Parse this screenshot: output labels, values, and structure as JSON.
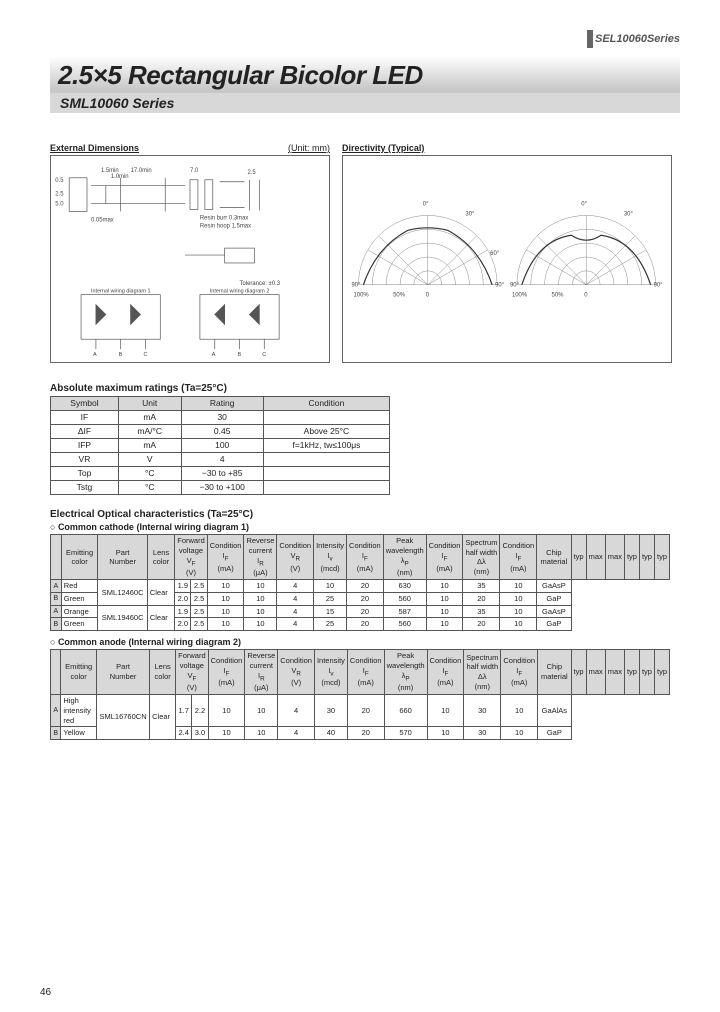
{
  "header_series": "SEL10060Series",
  "title": "2.5×5 Rectangular Bicolor LED",
  "subtitle": "SML10060 Series",
  "diagrams": {
    "dim_title": "External Dimensions",
    "dim_unit": "(Unit: mm)",
    "dir_title": "Directivity (Typical)",
    "dim_notes": [
      "1.5min",
      "1.0min",
      "17.0min",
      "7.0",
      "2.5",
      "0.5",
      "2.5",
      "5.0",
      "2.5",
      "3.2",
      "2.8",
      "0.05max",
      "Resin burr 0.3max",
      "Resin hoop 1.5max",
      "Tolerance: ±0.3",
      "Internal wiring diagram 1",
      "Internal wiring diagram 2",
      "A",
      "B",
      "C"
    ],
    "polar_labels": [
      "0°",
      "30°",
      "60°",
      "90°",
      "100%",
      "50%",
      "0"
    ]
  },
  "ratings": {
    "title": "Absolute maximum ratings (Ta=25°C)",
    "headers": [
      "Symbol",
      "Unit",
      "Rating",
      "Condition"
    ],
    "rows": [
      [
        "IF",
        "mA",
        "30",
        ""
      ],
      [
        "ΔIF",
        "mA/°C",
        "0.45",
        "Above 25°C"
      ],
      [
        "IFP",
        "mA",
        "100",
        "f=1kHz, tw≤100μs"
      ],
      [
        "VR",
        "V",
        "4",
        ""
      ],
      [
        "Top",
        "°C",
        "−30 to +85",
        ""
      ],
      [
        "Tstg",
        "°C",
        "−30 to +100",
        ""
      ]
    ]
  },
  "char": {
    "title": "Electrical Optical characteristics (Ta=25°C)",
    "sub1": "Common cathode (Internal wiring diagram 1)",
    "sub2": "Common anode (Internal wiring diagram 2)",
    "group_headers": [
      "Emitting color",
      "Part Number",
      "Lens color",
      "Forward voltage VF (V)",
      "Condition IF (mA)",
      "Reverse current IR (μA)",
      "Condition VR (V)",
      "Intensity Iv (mcd)",
      "Condition IF (mA)",
      "Peak wavelength λP (nm)",
      "Condition IF (mA)",
      "Spectrum half width Δλ (nm)",
      "Condition IF (mA)",
      "Chip material"
    ],
    "vf_sub": [
      "typ",
      "max"
    ],
    "single_sub": [
      "max",
      "typ",
      "typ",
      "typ"
    ],
    "rows1": [
      {
        "lbl": "A",
        "color": "Red",
        "part": "SML12460C",
        "lens": "Clear",
        "vf_typ": "1.9",
        "vf_max": "2.5",
        "if1": "10",
        "ir": "10",
        "vr": "4",
        "iv": "10",
        "if2": "20",
        "lp": "630",
        "if3": "10",
        "dl": "35",
        "if4": "10",
        "mat": "GaAsP"
      },
      {
        "lbl": "B",
        "color": "Green",
        "part": "",
        "lens": "",
        "vf_typ": "2.0",
        "vf_max": "2.5",
        "if1": "10",
        "ir": "10",
        "vr": "4",
        "iv": "25",
        "if2": "20",
        "lp": "560",
        "if3": "10",
        "dl": "20",
        "if4": "10",
        "mat": "GaP"
      },
      {
        "lbl": "A",
        "color": "Orange",
        "part": "SML19460C",
        "lens": "Clear",
        "vf_typ": "1.9",
        "vf_max": "2.5",
        "if1": "10",
        "ir": "10",
        "vr": "4",
        "iv": "15",
        "if2": "20",
        "lp": "587",
        "if3": "10",
        "dl": "35",
        "if4": "10",
        "mat": "GaAsP"
      },
      {
        "lbl": "B",
        "color": "Green",
        "part": "",
        "lens": "",
        "vf_typ": "2.0",
        "vf_max": "2.5",
        "if1": "10",
        "ir": "10",
        "vr": "4",
        "iv": "25",
        "if2": "20",
        "lp": "560",
        "if3": "10",
        "dl": "20",
        "if4": "10",
        "mat": "GaP"
      }
    ],
    "rows2": [
      {
        "lbl": "A",
        "color": "High intensity red",
        "part": "SML16760CN",
        "lens": "Clear",
        "vf_typ": "1.7",
        "vf_max": "2.2",
        "if1": "10",
        "ir": "10",
        "vr": "4",
        "iv": "30",
        "if2": "20",
        "lp": "660",
        "if3": "10",
        "dl": "30",
        "if4": "10",
        "mat": "GaAlAs"
      },
      {
        "lbl": "B",
        "color": "Yellow",
        "part": "",
        "lens": "",
        "vf_typ": "2.4",
        "vf_max": "3.0",
        "if1": "10",
        "ir": "10",
        "vr": "4",
        "iv": "40",
        "if2": "20",
        "lp": "570",
        "if3": "10",
        "dl": "30",
        "if4": "10",
        "mat": "GaP"
      }
    ]
  },
  "page_num": "46"
}
